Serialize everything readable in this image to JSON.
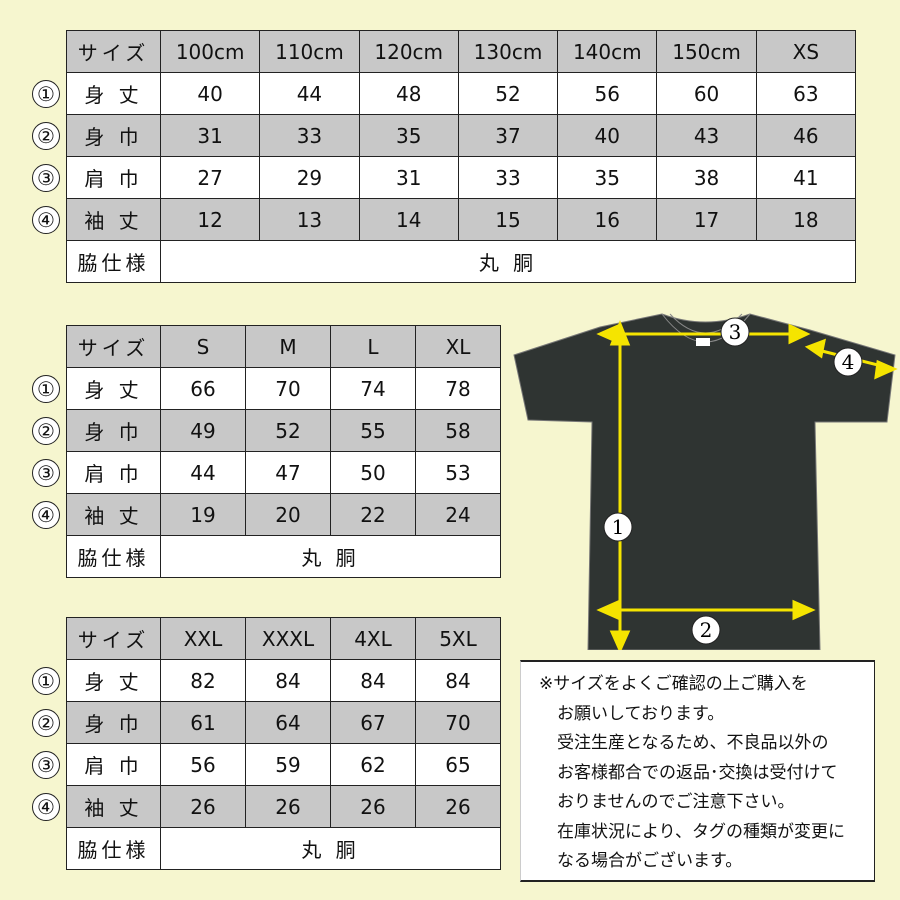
{
  "row_markers": [
    "①",
    "②",
    "③",
    "④"
  ],
  "row_labels": [
    "身 丈",
    "身 巾",
    "肩 巾",
    "袖 丈"
  ],
  "header_label": "サイズ",
  "side_label": "脇仕様",
  "side_value": "丸 胴",
  "tables": [
    {
      "sizes": [
        "100cm",
        "110cm",
        "120cm",
        "130cm",
        "140cm",
        "150cm",
        "XS"
      ],
      "rows": [
        [
          40,
          44,
          48,
          52,
          56,
          60,
          63
        ],
        [
          31,
          33,
          35,
          37,
          40,
          43,
          46
        ],
        [
          27,
          29,
          31,
          33,
          35,
          38,
          41
        ],
        [
          12,
          13,
          14,
          15,
          16,
          17,
          18
        ]
      ]
    },
    {
      "sizes": [
        "S",
        "M",
        "L",
        "XL"
      ],
      "rows": [
        [
          66,
          70,
          74,
          78
        ],
        [
          49,
          52,
          55,
          58
        ],
        [
          44,
          47,
          50,
          53
        ],
        [
          19,
          20,
          22,
          24
        ]
      ]
    },
    {
      "sizes": [
        "XXL",
        "XXXL",
        "4XL",
        "5XL"
      ],
      "rows": [
        [
          82,
          84,
          84,
          84
        ],
        [
          61,
          64,
          67,
          70
        ],
        [
          56,
          59,
          62,
          65
        ],
        [
          26,
          26,
          26,
          26
        ]
      ]
    }
  ],
  "diagram": {
    "markers": [
      "1",
      "2",
      "3",
      "4"
    ],
    "shirt_color": "#2f3432",
    "arrow_color": "#f5e400"
  },
  "note": {
    "lines": [
      "※サイズをよくご確認の上ご購入を",
      "お願いしております。",
      "受注生産となるため、不良品以外の",
      "お客様都合での返品･交換は受付けて",
      "おりませんのでご注意下さい。",
      "在庫状況により、タグの種類が変更に",
      "なる場合がございます。"
    ]
  }
}
